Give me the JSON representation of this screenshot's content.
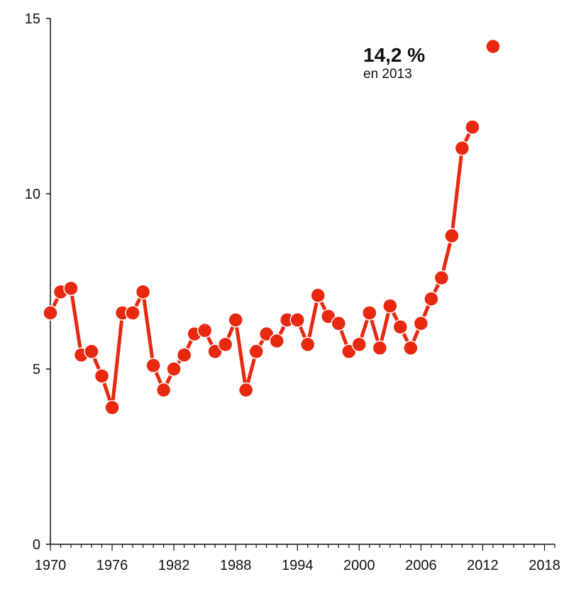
{
  "chart_data": {
    "type": "line",
    "title": "",
    "xlabel": "",
    "ylabel": "",
    "xlim": [
      1970,
      2019
    ],
    "ylim": [
      0,
      15
    ],
    "x_ticks": [
      1970,
      1976,
      1982,
      1988,
      1994,
      2000,
      2006,
      2012,
      2018
    ],
    "y_ticks": [
      0,
      5,
      10,
      15
    ],
    "grid": false,
    "legend": "none",
    "series": [
      {
        "color": "#e8280f",
        "x": [
          1970,
          1971,
          1972,
          1973,
          1974,
          1975,
          1976,
          1977,
          1978,
          1979,
          1980,
          1981,
          1982,
          1983,
          1984,
          1985,
          1986,
          1987,
          1988,
          1989,
          1990,
          1991,
          1992,
          1993,
          1994,
          1995,
          1996,
          1997,
          1998,
          1999,
          2000,
          2001,
          2002,
          2003,
          2004,
          2005,
          2006,
          2007,
          2008,
          2009,
          2010,
          2011
        ],
        "values": [
          6.6,
          7.2,
          7.3,
          5.4,
          5.5,
          4.8,
          3.9,
          6.6,
          6.6,
          7.2,
          5.1,
          4.4,
          5.0,
          5.4,
          6.0,
          6.1,
          5.5,
          5.7,
          6.4,
          4.4,
          5.5,
          6.0,
          5.8,
          6.4,
          6.4,
          5.7,
          7.1,
          6.5,
          6.3,
          5.5,
          5.7,
          6.6,
          5.6,
          6.8,
          6.2,
          5.6,
          6.3,
          7.0,
          7.6,
          8.8,
          11.3,
          11.9
        ]
      }
    ],
    "highlight_point": {
      "x": 2013,
      "value": 14.2,
      "label": "14,2 %",
      "sublabel": "en 2013"
    }
  }
}
